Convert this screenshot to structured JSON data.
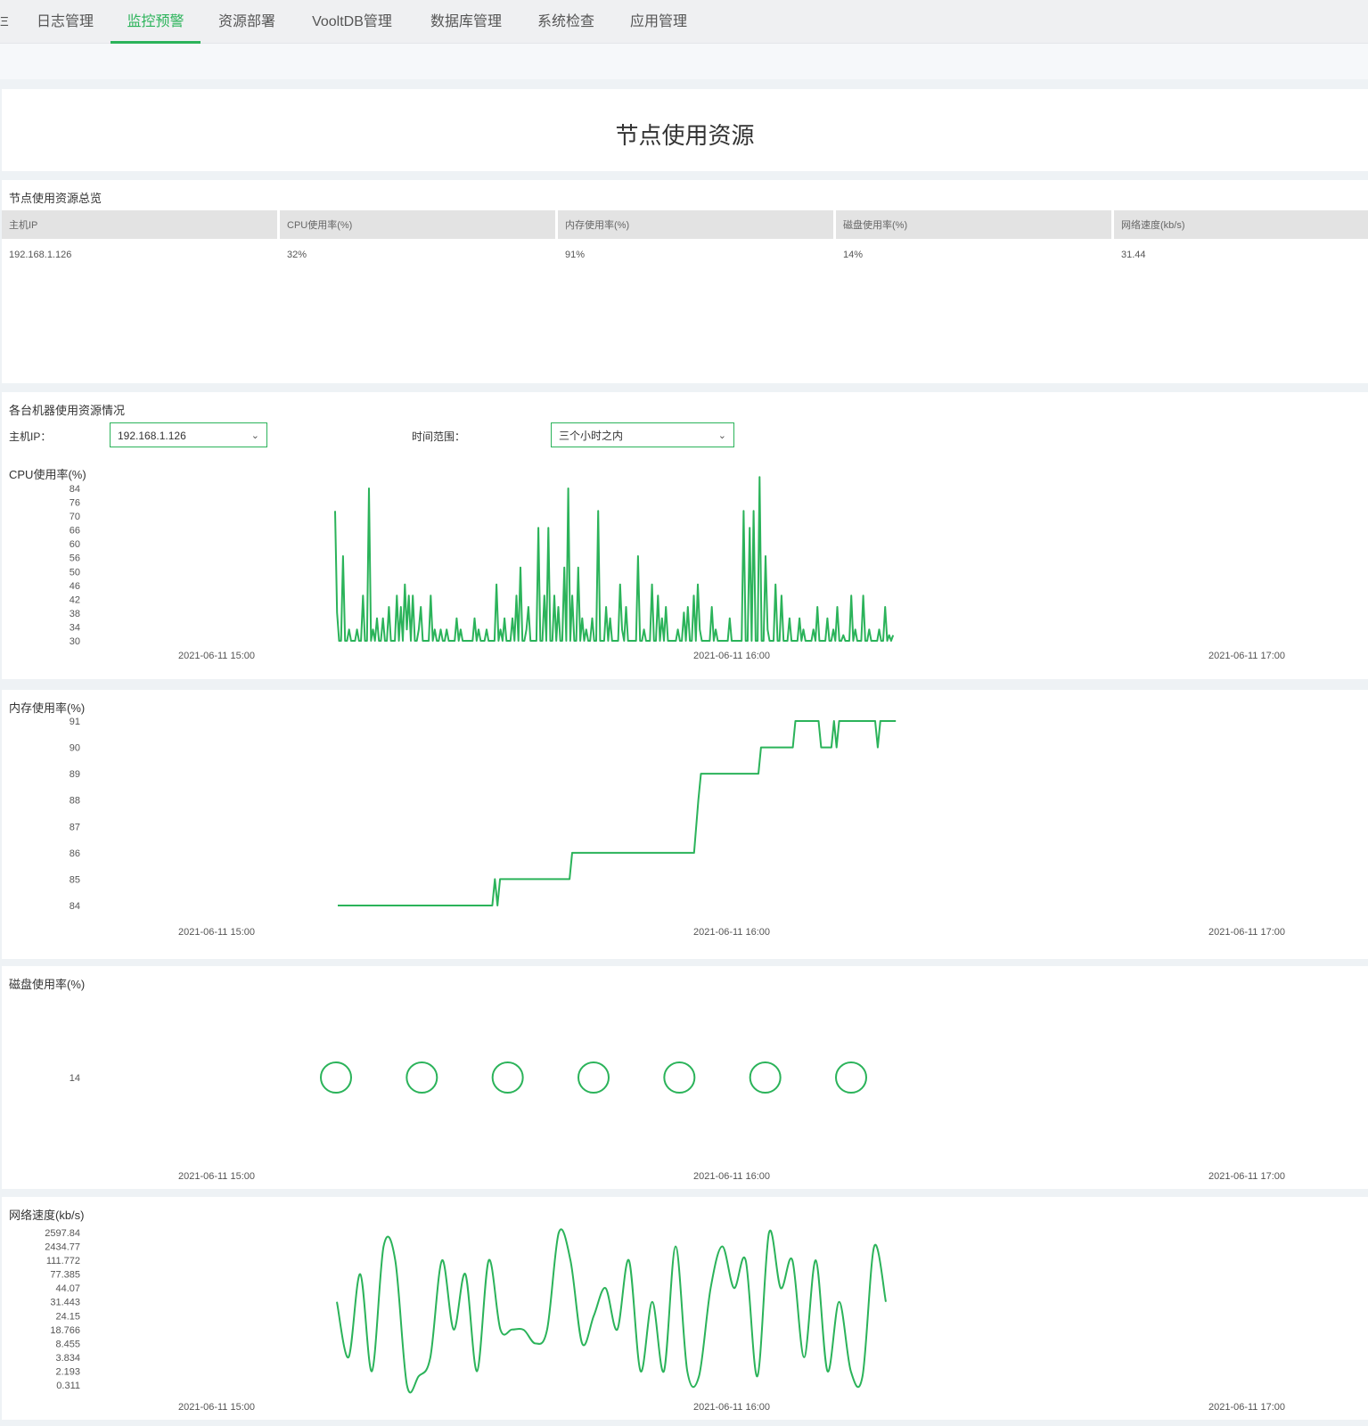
{
  "nav": {
    "edge_char": "Ξ",
    "tabs": [
      {
        "label": "日志管理",
        "active": false
      },
      {
        "label": "监控预警",
        "active": true
      },
      {
        "label": "资源部署",
        "active": false
      },
      {
        "label": "VooltDB管理",
        "active": false
      },
      {
        "label": "数据库管理",
        "active": false
      },
      {
        "label": "系统检查",
        "active": false
      },
      {
        "label": "应用管理",
        "active": false
      }
    ]
  },
  "page_title": "节点使用资源",
  "overview": {
    "title": "节点使用资源总览",
    "headers": [
      "主机IP",
      "CPU使用率(%)",
      "内存使用率(%)",
      "磁盘使用率(%)",
      "网络速度(kb/s)"
    ],
    "rows": [
      [
        "192.168.1.126",
        "32%",
        "91%",
        "14%",
        "31.44"
      ]
    ]
  },
  "machines": {
    "title": "各台机器使用资源情况",
    "host_label": "主机IP：",
    "host_value": "192.168.1.126",
    "range_label": "时间范围：",
    "range_value": "三个小时之内"
  },
  "colors": {
    "accent": "#2bb35a",
    "line": "#2bb35a"
  },
  "chart_data": [
    {
      "type": "line",
      "title": "CPU使用率(%)",
      "x_ticks": [
        "2021-06-11 15:00",
        "2021-06-11 16:00",
        "2021-06-11 17:00"
      ],
      "y_ticks": [
        "84",
        "76",
        "70",
        "66",
        "60",
        "56",
        "50",
        "46",
        "42",
        "38",
        "34",
        "30"
      ],
      "x_range": [
        "15:00",
        "17:00"
      ],
      "series": [
        {
          "x_start": "15:00",
          "x_end": "16:05",
          "values": [
            76,
            40,
            30,
            30,
            60,
            30,
            30,
            34,
            30,
            30,
            30,
            34,
            30,
            30,
            46,
            30,
            30,
            84,
            30,
            34,
            30,
            38,
            30,
            30,
            38,
            30,
            30,
            42,
            30,
            30,
            30,
            46,
            30,
            42,
            30,
            50,
            34,
            46,
            30,
            46,
            30,
            30,
            34,
            42,
            30,
            30,
            30,
            30,
            46,
            30,
            34,
            30,
            30,
            34,
            30,
            30,
            34,
            30,
            30,
            30,
            30,
            38,
            30,
            34,
            30,
            30,
            30,
            30,
            30,
            30,
            38,
            30,
            34,
            30,
            30,
            30,
            34,
            30,
            30,
            30,
            30,
            50,
            30,
            34,
            30,
            38,
            30,
            30,
            30,
            38,
            30,
            46,
            30,
            56,
            30,
            30,
            34,
            42,
            30,
            30,
            30,
            30,
            70,
            30,
            30,
            46,
            30,
            70,
            30,
            30,
            46,
            30,
            42,
            30,
            30,
            56,
            30,
            84,
            30,
            46,
            30,
            30,
            56,
            30,
            38,
            30,
            34,
            30,
            30,
            38,
            30,
            30,
            76,
            30,
            30,
            30,
            42,
            30,
            38,
            30,
            30,
            30,
            30,
            50,
            34,
            30,
            42,
            30,
            30,
            30,
            30,
            30,
            60,
            30,
            30,
            34,
            30,
            30,
            30,
            50,
            30,
            30,
            46,
            30,
            38,
            30,
            42,
            30,
            30,
            30,
            30,
            30,
            34,
            30,
            30,
            40,
            30,
            42,
            30,
            30,
            46,
            30,
            50,
            34,
            30,
            30,
            30,
            30,
            30,
            42,
            30,
            34,
            30,
            30,
            30,
            30,
            30,
            30,
            38,
            30,
            30,
            30,
            30,
            30,
            30,
            76,
            30,
            30,
            70,
            30,
            76,
            30,
            30,
            88,
            30,
            30,
            60,
            34,
            30,
            30,
            30,
            50,
            30,
            30,
            46,
            30,
            30,
            30,
            38,
            30,
            30,
            30,
            30,
            38,
            30,
            34,
            30,
            30,
            30,
            30,
            34,
            30,
            42,
            30,
            30,
            30,
            30,
            38,
            30,
            30,
            34,
            30,
            42,
            30,
            30,
            32,
            30,
            30,
            30,
            46,
            30,
            34,
            30,
            30,
            30,
            46,
            30,
            30,
            34,
            30,
            30,
            30,
            30,
            34,
            30,
            30,
            42,
            30,
            32,
            30,
            32
          ]
        }
      ]
    },
    {
      "type": "line",
      "title": "内存使用率(%)",
      "x_ticks": [
        "2021-06-11 15:00",
        "2021-06-11 16:00",
        "2021-06-11 17:00"
      ],
      "y_ticks": [
        "91",
        "90",
        "89",
        "88",
        "87",
        "86",
        "85",
        "84"
      ],
      "series": [
        {
          "points": [
            [
              "15:00",
              84
            ],
            [
              "15:18",
              84
            ],
            [
              "15:18.3",
              85
            ],
            [
              "15:18.6",
              84
            ],
            [
              "15:18.9",
              85
            ],
            [
              "15:27",
              85
            ],
            [
              "15:27.3",
              86
            ],
            [
              "15:41.5",
              86
            ],
            [
              "15:42",
              88
            ],
            [
              "15:42.3",
              89
            ],
            [
              "15:49",
              89
            ],
            [
              "15:49.3",
              90
            ],
            [
              "15:53",
              90
            ],
            [
              "15:53.3",
              91
            ],
            [
              "15:56",
              91
            ],
            [
              "15:56.3",
              90
            ],
            [
              "15:57.5",
              90
            ],
            [
              "15:57.8",
              91
            ],
            [
              "15:58.1",
              90
            ],
            [
              "15:58.4",
              91
            ],
            [
              "16:02.6",
              91
            ],
            [
              "16:02.9",
              90
            ],
            [
              "16:03.2",
              91
            ],
            [
              "16:05",
              91
            ]
          ]
        }
      ]
    },
    {
      "type": "scatter",
      "title": "磁盘使用率(%)",
      "x_ticks": [
        "2021-06-11 15:00",
        "2021-06-11 16:00",
        "2021-06-11 17:00"
      ],
      "y_ticks": [
        "14"
      ],
      "series": [
        {
          "points": [
            [
              "15:00",
              14
            ],
            [
              "15:10",
              14
            ],
            [
              "15:20",
              14
            ],
            [
              "15:30",
              14
            ],
            [
              "15:40",
              14
            ],
            [
              "15:50",
              14
            ],
            [
              "16:00",
              14
            ]
          ]
        }
      ]
    },
    {
      "type": "line",
      "title": "网络速度(kb/s)",
      "x_ticks": [
        "2021-06-11 15:00",
        "2021-06-11 16:00",
        "2021-06-11 17:00"
      ],
      "y_ticks": [
        "2597.84",
        "2434.77",
        "111.772",
        "77.385",
        "44.07",
        "31.443",
        "24.15",
        "18.766",
        "8.455",
        "3.834",
        "2.193",
        "0.311"
      ],
      "series": [
        {
          "values": [
            31.443,
            3.834,
            77.385,
            2.193,
            2434.77,
            111.772,
            0.311,
            1.5,
            3.834,
            111.772,
            18.766,
            77.385,
            2.193,
            111.772,
            18.766,
            18.766,
            18.5,
            8.455,
            18.766,
            2597.84,
            111.772,
            8.455,
            24.15,
            44.07,
            18.766,
            111.772,
            2.193,
            31.443,
            2.193,
            2434.77,
            2.193,
            1.5,
            44.07,
            2434.77,
            44.07,
            111.772,
            1.5,
            2597.84,
            44.07,
            111.772,
            3.834,
            111.772,
            2.193,
            31.443,
            2.193,
            1.5,
            2434.77,
            31.443
          ]
        }
      ]
    }
  ]
}
